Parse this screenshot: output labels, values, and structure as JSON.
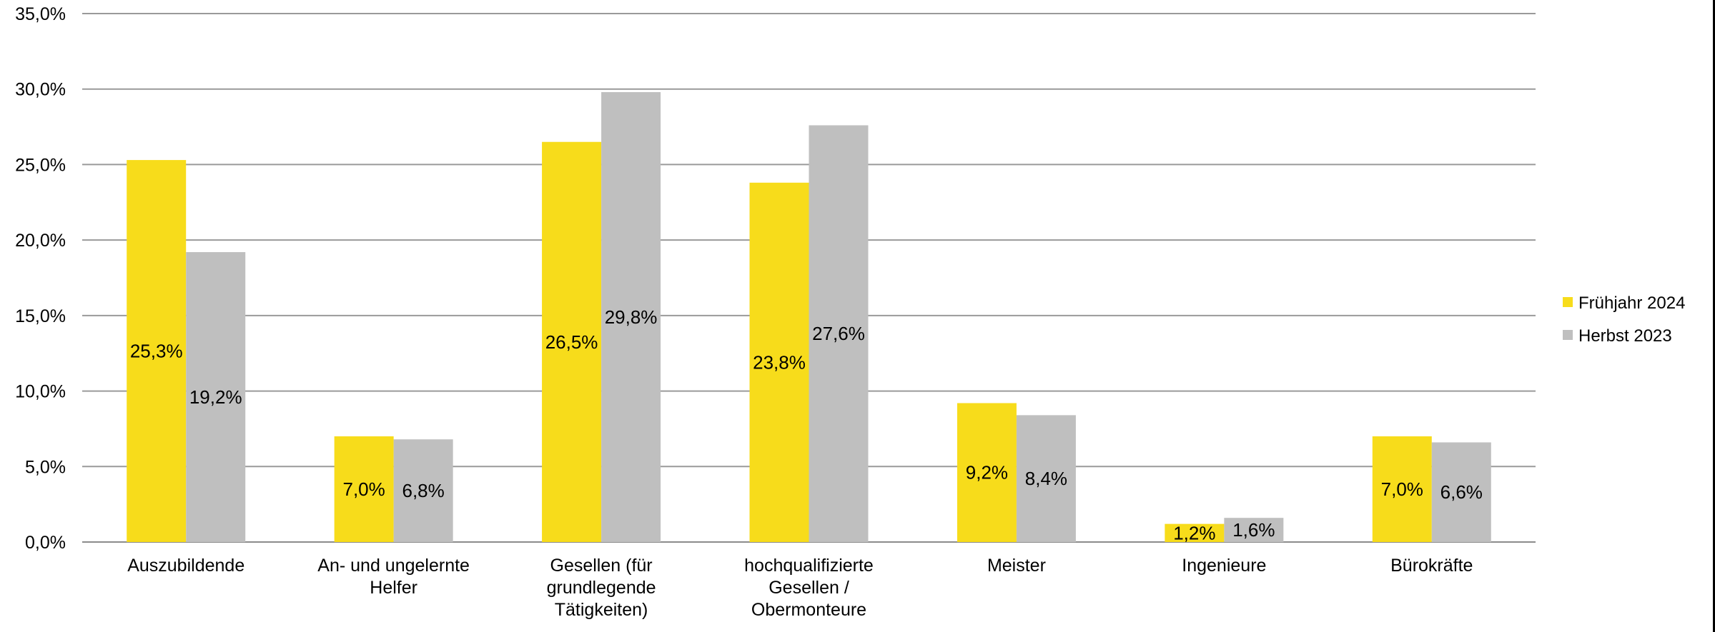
{
  "chart_data": {
    "type": "bar",
    "title": "",
    "xlabel": "",
    "ylabel": "",
    "ylim": [
      0,
      35
    ],
    "y_tick_values": [
      0,
      5,
      10,
      15,
      20,
      25,
      30,
      35
    ],
    "y_tick_labels": [
      "0,0%",
      "5,0%",
      "10,0%",
      "15,0%",
      "20,0%",
      "25,0%",
      "30,0%",
      "35,0%"
    ],
    "grid": true,
    "legend_position": "right",
    "categories": [
      [
        "Auszubildende"
      ],
      [
        "An- und ungelernte",
        "Helfer"
      ],
      [
        "Gesellen (für",
        "grundlegende",
        "Tätigkeiten)"
      ],
      [
        "hochqualifizierte",
        "Gesellen /",
        "Obermonteure"
      ],
      [
        "Meister"
      ],
      [
        "Ingenieure"
      ],
      [
        "Bürokräfte"
      ]
    ],
    "series": [
      {
        "name": "Frühjahr 2024",
        "color": "#F7DC1B",
        "values": [
          25.3,
          7.0,
          26.5,
          23.8,
          9.2,
          1.2,
          7.0
        ],
        "labels": [
          "25,3%",
          "7,0%",
          "26,5%",
          "23,8%",
          "9,2%",
          "1,2%",
          "7,0%"
        ]
      },
      {
        "name": "Herbst 2023",
        "color": "#BFBFBF",
        "values": [
          19.2,
          6.8,
          29.8,
          27.6,
          8.4,
          1.6,
          6.6
        ],
        "labels": [
          "19,2%",
          "6,8%",
          "29,8%",
          "27,6%",
          "8,4%",
          "1,6%",
          "6,6%"
        ]
      }
    ]
  }
}
